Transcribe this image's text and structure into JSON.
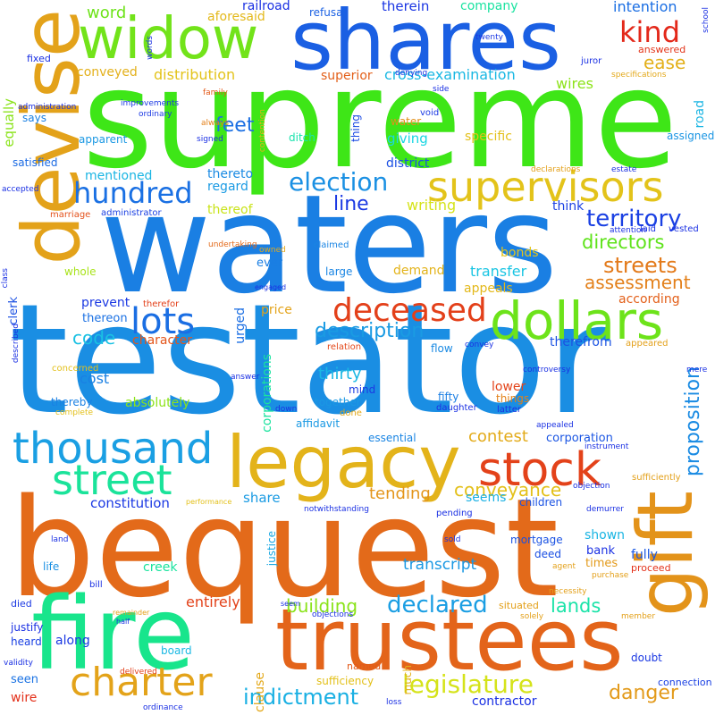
{
  "words": [
    {
      "text": "supreme",
      "color": "#3ee617"
    },
    {
      "text": "testator",
      "color": "#1a8ee3"
    },
    {
      "text": "waters",
      "color": "#1a7fe3"
    },
    {
      "text": "bequest",
      "color": "#e36a1a"
    },
    {
      "text": "trustees",
      "color": "#e3641a"
    },
    {
      "text": "fire",
      "color": "#18e58c"
    },
    {
      "text": "shares",
      "color": "#1a5fe3"
    },
    {
      "text": "devise",
      "color": "#e3a21a"
    },
    {
      "text": "legacy",
      "color": "#e3b31a"
    },
    {
      "text": "widow",
      "color": "#72e31a"
    },
    {
      "text": "gift",
      "color": "#e3931a"
    },
    {
      "text": "dollars",
      "color": "#6de31a"
    },
    {
      "text": "thousand",
      "color": "#1a9fe3"
    },
    {
      "text": "stock",
      "color": "#e3421a"
    },
    {
      "text": "supervisors",
      "color": "#e3c31a"
    },
    {
      "text": "street",
      "color": "#1ae39a"
    },
    {
      "text": "charter",
      "color": "#e3a31a"
    },
    {
      "text": "deceased",
      "color": "#e3401a"
    },
    {
      "text": "lots",
      "color": "#1a6ee3"
    },
    {
      "text": "kind",
      "color": "#e3281a"
    },
    {
      "text": "hundred",
      "color": "#1a70e3"
    },
    {
      "text": "election",
      "color": "#1a90e3"
    },
    {
      "text": "territory",
      "color": "#1a40e3"
    },
    {
      "text": "streets",
      "color": "#e37a1a"
    },
    {
      "text": "legislature",
      "color": "#d5e31a"
    },
    {
      "text": "declared",
      "color": "#1a9ee3"
    },
    {
      "text": "indictment",
      "color": "#1ab0e3"
    },
    {
      "text": "conveyance",
      "color": "#e3c01a"
    },
    {
      "text": "proposition",
      "color": "#1a8be3"
    },
    {
      "text": "description",
      "color": "#1a9be3"
    },
    {
      "text": "directors",
      "color": "#5ee31a"
    },
    {
      "text": "assessment",
      "color": "#e3801a"
    },
    {
      "text": "building",
      "color": "#8ae31a"
    },
    {
      "text": "danger",
      "color": "#e39a1a"
    },
    {
      "text": "lands",
      "color": "#1ae3a8"
    },
    {
      "text": "line",
      "color": "#1a38e3"
    },
    {
      "text": "ease",
      "color": "#e3b01a"
    },
    {
      "text": "contest",
      "color": "#e3ab1a"
    },
    {
      "text": "tending",
      "color": "#e3951a"
    },
    {
      "text": "transcript",
      "color": "#1a98e3"
    },
    {
      "text": "thirty",
      "color": "#1ab7e3"
    },
    {
      "text": "code",
      "color": "#1ac1e3"
    },
    {
      "text": "feet",
      "color": "#1a6fe3"
    },
    {
      "text": "writing",
      "color": "#d5e31a"
    },
    {
      "text": "word",
      "color": "#6ee31a"
    },
    {
      "text": "railroad",
      "color": "#1a30e3"
    },
    {
      "text": "therein",
      "color": "#1a35e3"
    },
    {
      "text": "intention",
      "color": "#1a6ee3"
    },
    {
      "text": "company",
      "color": "#1ae3a0"
    },
    {
      "text": "wires",
      "color": "#8de31a"
    },
    {
      "text": "aforesaid",
      "color": "#e3b81a"
    },
    {
      "text": "refusal",
      "color": "#1a60e3"
    },
    {
      "text": "distribution",
      "color": "#e3c31a"
    },
    {
      "text": "conveyed",
      "color": "#e3b01a"
    },
    {
      "text": "superior",
      "color": "#e3601a"
    },
    {
      "text": "cross-examination",
      "color": "#1ab8e3"
    },
    {
      "text": "answered",
      "color": "#e3351a"
    },
    {
      "text": "equally",
      "color": "#8ae31a"
    },
    {
      "text": "says",
      "color": "#1a80e3"
    },
    {
      "text": "satisfied",
      "color": "#1a6ae3"
    },
    {
      "text": "apparent",
      "color": "#1a98e3"
    },
    {
      "text": "mentioned",
      "color": "#1ab5e3"
    },
    {
      "text": "thereto",
      "color": "#1a8ae3"
    },
    {
      "text": "regard",
      "color": "#1a9ae3"
    },
    {
      "text": "thereof",
      "color": "#c9e31a"
    },
    {
      "text": "think",
      "color": "#1a40e3"
    },
    {
      "text": "giving",
      "color": "#1ad6e3"
    },
    {
      "text": "district",
      "color": "#1a4fe3"
    },
    {
      "text": "specific",
      "color": "#e3c01a"
    },
    {
      "text": "water",
      "color": "#e3901a"
    },
    {
      "text": "thing",
      "color": "#1a4ae3"
    },
    {
      "text": "ditch",
      "color": "#1ae3ad"
    },
    {
      "text": "assigned",
      "color": "#1a95e3"
    },
    {
      "text": "road",
      "color": "#1ab5e3"
    },
    {
      "text": "bonds",
      "color": "#e3c41a"
    },
    {
      "text": "demand",
      "color": "#e3b31a"
    },
    {
      "text": "transfer",
      "color": "#1ac5e3"
    },
    {
      "text": "appeals",
      "color": "#e3b81a"
    },
    {
      "text": "according",
      "color": "#e3601a"
    },
    {
      "text": "whole",
      "color": "#a8e31a"
    },
    {
      "text": "ever",
      "color": "#1a7ee3"
    },
    {
      "text": "large",
      "color": "#1a85e3"
    },
    {
      "text": "prevent",
      "color": "#1a38e3"
    },
    {
      "text": "price",
      "color": "#e3a31a"
    },
    {
      "text": "thereon",
      "color": "#1a70e3"
    },
    {
      "text": "character",
      "color": "#e3551a"
    },
    {
      "text": "urged",
      "color": "#1a6ee3"
    },
    {
      "text": "clerk",
      "color": "#1a50e3"
    },
    {
      "text": "cost",
      "color": "#1a80e3"
    },
    {
      "text": "absolutely",
      "color": "#8de31a"
    },
    {
      "text": "corporations",
      "color": "#1ae39e"
    },
    {
      "text": "mind",
      "color": "#1a3ae3"
    },
    {
      "text": "together",
      "color": "#1a98e3"
    },
    {
      "text": "lower",
      "color": "#e3441a"
    },
    {
      "text": "things",
      "color": "#e3821a"
    },
    {
      "text": "therefrom",
      "color": "#1a52e3"
    },
    {
      "text": "flow",
      "color": "#1a8ae3"
    },
    {
      "text": "fifty",
      "color": "#1a7ee3"
    },
    {
      "text": "essential",
      "color": "#1a85e3"
    },
    {
      "text": "corporation",
      "color": "#1a55e3"
    },
    {
      "text": "affidavit",
      "color": "#1a99e3"
    },
    {
      "text": "seems",
      "color": "#1ab0e3"
    },
    {
      "text": "children",
      "color": "#1a52e3"
    },
    {
      "text": "share",
      "color": "#1a9be3"
    },
    {
      "text": "constitution",
      "color": "#1a38e3"
    },
    {
      "text": "fully",
      "color": "#1a58e3"
    },
    {
      "text": "shown",
      "color": "#1ab5e3"
    },
    {
      "text": "bank",
      "color": "#1a30e3"
    },
    {
      "text": "times",
      "color": "#e39a1a"
    },
    {
      "text": "mortgage",
      "color": "#1a52e3"
    },
    {
      "text": "deed",
      "color": "#1a4fe3"
    },
    {
      "text": "creek",
      "color": "#1ae39e"
    },
    {
      "text": "justice",
      "color": "#1aa8e3"
    },
    {
      "text": "entirely",
      "color": "#e3421a"
    },
    {
      "text": "life",
      "color": "#1a90e3"
    },
    {
      "text": "along",
      "color": "#1a38e3"
    },
    {
      "text": "justify",
      "color": "#1a30e3"
    },
    {
      "text": "heard",
      "color": "#1a40e3"
    },
    {
      "text": "board",
      "color": "#1ab8e3"
    },
    {
      "text": "seen",
      "color": "#1a72e3"
    },
    {
      "text": "wire",
      "color": "#e3301a"
    },
    {
      "text": "sufficiency",
      "color": "#e3c01a"
    },
    {
      "text": "contractor",
      "color": "#1a30e3"
    },
    {
      "text": "named",
      "color": "#e35a1a"
    },
    {
      "text": "clause",
      "color": "#e3a81a"
    },
    {
      "text": "much",
      "color": "#e3b01a"
    },
    {
      "text": "situated",
      "color": "#e3a01a"
    },
    {
      "text": "proceed",
      "color": "#e3321a"
    },
    {
      "text": "doubt",
      "color": "#1a38e3"
    },
    {
      "text": "connection",
      "color": "#1a40e3"
    },
    {
      "text": "died",
      "color": "#1a38e3"
    },
    {
      "text": "fixed",
      "color": "#1a30e3"
    },
    {
      "text": "administration",
      "color": "#1a30e3"
    },
    {
      "text": "improvements",
      "color": "#1a38e3"
    },
    {
      "text": "ordinary",
      "color": "#1a38e3"
    },
    {
      "text": "family",
      "color": "#e35a1a"
    },
    {
      "text": "always",
      "color": "#e3801a"
    },
    {
      "text": "signed",
      "color": "#1a30e3"
    },
    {
      "text": "contention",
      "color": "#e3b01a"
    },
    {
      "text": "void",
      "color": "#1a38e3"
    },
    {
      "text": "denying",
      "color": "#1a30e3"
    },
    {
      "text": "twenty",
      "color": "#1a38e3"
    },
    {
      "text": "juror",
      "color": "#1a30e3"
    },
    {
      "text": "specifications",
      "color": "#e3a81a"
    },
    {
      "text": "side",
      "color": "#1a30e3"
    },
    {
      "text": "words",
      "color": "#1a30e3"
    },
    {
      "text": "school",
      "color": "#1a30e3"
    },
    {
      "text": "declarations",
      "color": "#e3a01a"
    },
    {
      "text": "estate",
      "color": "#1a30e3"
    },
    {
      "text": "attention",
      "color": "#1a30e3"
    },
    {
      "text": "vested",
      "color": "#1a30e3"
    },
    {
      "text": "laid",
      "color": "#1a30e3"
    },
    {
      "text": "accepted",
      "color": "#1a30e3"
    },
    {
      "text": "marriage",
      "color": "#e3501a"
    },
    {
      "text": "administrator",
      "color": "#1a40e3"
    },
    {
      "text": "undertaking",
      "color": "#e36a1a"
    },
    {
      "text": "owned",
      "color": "#e3a81a"
    },
    {
      "text": "claimed",
      "color": "#1a85e3"
    },
    {
      "text": "engaged",
      "color": "#1a30e3"
    },
    {
      "text": "therefor",
      "color": "#e3401a"
    },
    {
      "text": "class",
      "color": "#1a30e3"
    },
    {
      "text": "described",
      "color": "#1a30e3"
    },
    {
      "text": "relation",
      "color": "#e3481a"
    },
    {
      "text": "convey",
      "color": "#1a30e3"
    },
    {
      "text": "appeared",
      "color": "#e3a01a"
    },
    {
      "text": "mere",
      "color": "#1a30e3"
    },
    {
      "text": "concerned",
      "color": "#e3c01a"
    },
    {
      "text": "answer",
      "color": "#1a30e3"
    },
    {
      "text": "controversy",
      "color": "#1a30e3"
    },
    {
      "text": "thereby",
      "color": "#1a80e3"
    },
    {
      "text": "complete",
      "color": "#e3c01a"
    },
    {
      "text": "down",
      "color": "#1a30e3"
    },
    {
      "text": "done",
      "color": "#e3a81a"
    },
    {
      "text": "daughter",
      "color": "#1a30e3"
    },
    {
      "text": "latter",
      "color": "#1a30e3"
    },
    {
      "text": "appealed",
      "color": "#1a30e3"
    },
    {
      "text": "instrument",
      "color": "#1a30e3"
    },
    {
      "text": "sufficiently",
      "color": "#e3a01a"
    },
    {
      "text": "objection",
      "color": "#1a30e3"
    },
    {
      "text": "demurrer",
      "color": "#1a30e3"
    },
    {
      "text": "performance",
      "color": "#e3c01a"
    },
    {
      "text": "notwithstanding",
      "color": "#1a30e3"
    },
    {
      "text": "pending",
      "color": "#1a30e3"
    },
    {
      "text": "land",
      "color": "#1a30e3"
    },
    {
      "text": "sold",
      "color": "#1a30e3"
    },
    {
      "text": "agent",
      "color": "#e3a01a"
    },
    {
      "text": "purchase",
      "color": "#e3a01a"
    },
    {
      "text": "necessity",
      "color": "#e3a01a"
    },
    {
      "text": "bill",
      "color": "#1a30e3"
    },
    {
      "text": "seem",
      "color": "#1a30e3"
    },
    {
      "text": "remainder",
      "color": "#e3a01a"
    },
    {
      "text": "half",
      "color": "#1a30e3"
    },
    {
      "text": "objections",
      "color": "#1a30e3"
    },
    {
      "text": "solely",
      "color": "#e3a01a"
    },
    {
      "text": "member",
      "color": "#e3a01a"
    },
    {
      "text": "validity",
      "color": "#1a30e3"
    },
    {
      "text": "delivered",
      "color": "#e3401a"
    },
    {
      "text": "ordinance",
      "color": "#1a30e3"
    },
    {
      "text": "loss",
      "color": "#1a30e3"
    }
  ]
}
